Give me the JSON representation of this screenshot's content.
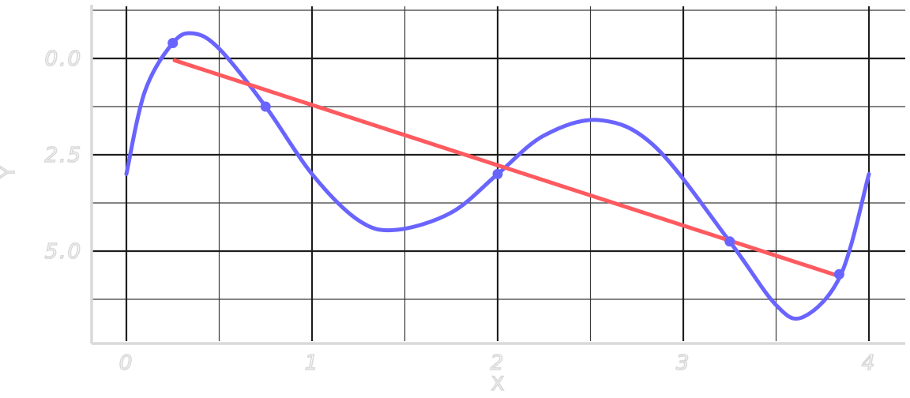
{
  "chart_data": {
    "type": "line",
    "title": "",
    "xlabel": "X",
    "ylabel": "Y",
    "xlim": [
      0,
      4
    ],
    "ylim": [
      -1.4,
      7.3
    ],
    "y_inverted": true,
    "grid": true,
    "x_ticks": [
      {
        "value": 0,
        "label": "0"
      },
      {
        "value": 1,
        "label": "1"
      },
      {
        "value": 2,
        "label": "2"
      },
      {
        "value": 3,
        "label": "3"
      },
      {
        "value": 4,
        "label": "4"
      }
    ],
    "y_ticks": [
      {
        "value": 0.0,
        "label": "0.0"
      },
      {
        "value": 2.5,
        "label": "2.5"
      },
      {
        "value": 5.0,
        "label": "5.0"
      }
    ],
    "series": [
      {
        "type": "spline",
        "color": "#6a64ff",
        "points": [
          {
            "x": 0.0,
            "y": 3.0
          },
          {
            "x": 0.1,
            "y": 0.85
          },
          {
            "x": 0.25,
            "y": -0.4
          },
          {
            "x": 0.36,
            "y": -0.65
          },
          {
            "x": 0.5,
            "y": -0.25
          },
          {
            "x": 0.75,
            "y": 1.25
          },
          {
            "x": 1.0,
            "y": 3.0
          },
          {
            "x": 1.25,
            "y": 4.2
          },
          {
            "x": 1.45,
            "y": 4.45
          },
          {
            "x": 1.75,
            "y": 4.0
          },
          {
            "x": 2.0,
            "y": 3.0
          },
          {
            "x": 2.25,
            "y": 2.0
          },
          {
            "x": 2.55,
            "y": 1.6
          },
          {
            "x": 2.85,
            "y": 2.3
          },
          {
            "x": 3.25,
            "y": 4.75
          },
          {
            "x": 3.5,
            "y": 6.4
          },
          {
            "x": 3.65,
            "y": 6.7
          },
          {
            "x": 3.85,
            "y": 5.6
          },
          {
            "x": 4.0,
            "y": 3.0
          }
        ]
      },
      {
        "type": "line",
        "color": "#ff5a5f",
        "points": [
          {
            "x": 0.26,
            "y": 0.05
          },
          {
            "x": 3.84,
            "y": 5.65
          }
        ]
      }
    ],
    "markers": {
      "color": "#6a64ff",
      "points": [
        {
          "x": 0.25,
          "y": -0.4
        },
        {
          "x": 0.75,
          "y": 1.25
        },
        {
          "x": 2.0,
          "y": 3.0
        },
        {
          "x": 3.25,
          "y": 4.75
        },
        {
          "x": 3.84,
          "y": 5.6
        }
      ]
    },
    "colors": {
      "grid_major": "#1e1e1e",
      "grid_minor": "#3a3a3a",
      "axis": "#d9d9d9",
      "label": "#d9d9d9"
    }
  }
}
